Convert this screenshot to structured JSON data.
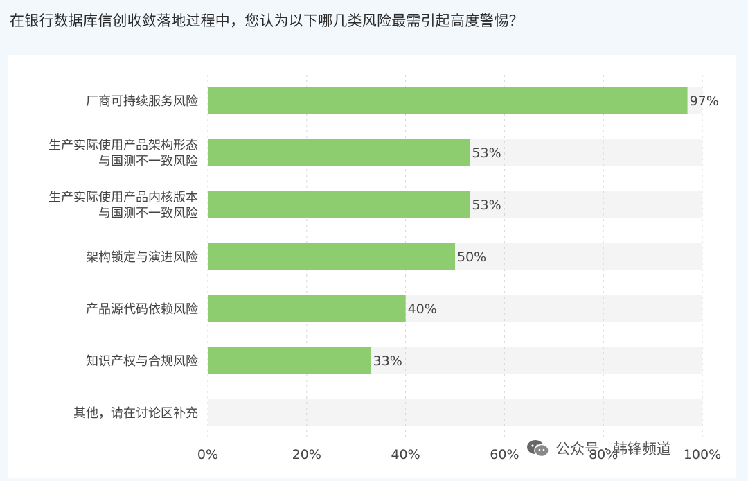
{
  "question": "在银行数据库信创收敛落地过程中，您认为以下哪几类风险最需引起高度警惕？",
  "watermark_text": "公众号 · 韩锋频道",
  "chart_data": {
    "type": "bar",
    "orientation": "horizontal",
    "categories": [
      [
        "厂商可持续服务风险"
      ],
      [
        "生产实际使用产品架构形态",
        "与国测不一致风险"
      ],
      [
        "生产实际使用产品内核版本",
        "与国测不一致风险"
      ],
      [
        "架构锁定与演进风险"
      ],
      [
        "产品源代码依赖风险"
      ],
      [
        "知识产权与合规风险"
      ],
      [
        "其他，请在讨论区补充"
      ]
    ],
    "values": [
      97,
      53,
      53,
      50,
      40,
      33,
      0
    ],
    "data_labels": [
      "97%",
      "53%",
      "53%",
      "50%",
      "40%",
      "33%",
      ""
    ],
    "xlim": [
      0,
      100
    ],
    "x_ticks": [
      "0%",
      "20%",
      "40%",
      "60%",
      "80%",
      "100%"
    ],
    "grid": true,
    "colors": {
      "bar": "#8dcd6f",
      "track": "#f4f4f4",
      "grid": "#d6d6d6",
      "text": "#444444"
    }
  }
}
